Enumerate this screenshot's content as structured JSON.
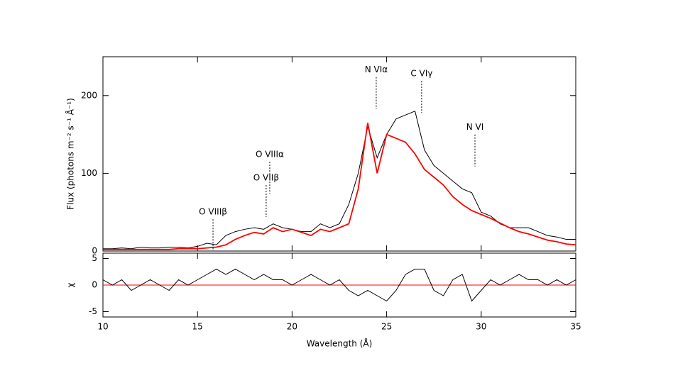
{
  "chart_data": [
    {
      "type": "line",
      "ylabel": "Flux (photons m⁻² s⁻¹ Å⁻¹)",
      "xlim": [
        10,
        35
      ],
      "ylim": [
        0,
        250
      ],
      "yticks": [
        0,
        100,
        200
      ],
      "x": [
        10,
        10.5,
        11,
        11.5,
        12,
        12.5,
        13,
        13.5,
        14,
        14.5,
        15,
        15.5,
        16,
        16.5,
        17,
        17.5,
        18,
        18.5,
        19,
        19.5,
        20,
        20.5,
        21,
        21.5,
        22,
        22.5,
        23,
        23.5,
        24,
        24.5,
        25,
        25.5,
        26,
        26.5,
        27,
        27.5,
        28,
        28.5,
        29,
        29.5,
        30,
        30.5,
        31,
        31.5,
        32,
        32.5,
        33,
        33.5,
        34,
        34.5,
        35
      ],
      "series": [
        {
          "color": "#000000",
          "values": [
            3,
            3,
            4,
            3,
            5,
            4,
            4,
            5,
            5,
            4,
            6,
            10,
            8,
            20,
            25,
            28,
            30,
            28,
            35,
            30,
            28,
            25,
            25,
            35,
            30,
            35,
            60,
            100,
            160,
            120,
            150,
            170,
            175,
            180,
            130,
            110,
            100,
            90,
            80,
            75,
            50,
            45,
            35,
            30,
            30,
            30,
            25,
            20,
            18,
            15,
            15
          ]
        },
        {
          "color": "#ff0000",
          "values": [
            2,
            2,
            2,
            2,
            2,
            2,
            2,
            2,
            3,
            3,
            3,
            4,
            5,
            8,
            15,
            20,
            24,
            22,
            30,
            25,
            28,
            24,
            20,
            28,
            25,
            30,
            35,
            80,
            165,
            100,
            150,
            145,
            140,
            125,
            105,
            95,
            85,
            70,
            60,
            52,
            47,
            42,
            36,
            30,
            25,
            22,
            18,
            14,
            12,
            9,
            8
          ]
        }
      ],
      "annotations": [
        {
          "text": "O VIIIβ",
          "x": 15.82,
          "y": 50
        },
        {
          "text": "O VIIβ",
          "x": 18.63,
          "y": 94
        },
        {
          "text": "O VIIIα",
          "x": 18.82,
          "y": 124
        },
        {
          "text": "N VIα",
          "x": 24.45,
          "y": 233
        },
        {
          "text": "C VIγ",
          "x": 26.85,
          "y": 228
        },
        {
          "text": "N VI",
          "x": 29.67,
          "y": 159
        }
      ]
    },
    {
      "type": "line",
      "ylabel": "χ",
      "xlabel": "Wavelength (Å)",
      "xlim": [
        10,
        35
      ],
      "ylim": [
        -6,
        6
      ],
      "yticks": [
        -5,
        0,
        5
      ],
      "xticks": [
        10,
        15,
        20,
        25,
        30,
        35
      ],
      "x": [
        10,
        10.5,
        11,
        11.5,
        12,
        12.5,
        13,
        13.5,
        14,
        14.5,
        15,
        15.5,
        16,
        16.5,
        17,
        17.5,
        18,
        18.5,
        19,
        19.5,
        20,
        20.5,
        21,
        21.5,
        22,
        22.5,
        23,
        23.5,
        24,
        24.5,
        25,
        25.5,
        26,
        26.5,
        27,
        27.5,
        28,
        28.5,
        29,
        29.5,
        30,
        30.5,
        31,
        31.5,
        32,
        32.5,
        33,
        33.5,
        34,
        34.5,
        35
      ],
      "series": [
        {
          "color": "#000000",
          "values": [
            1,
            0,
            1,
            -1,
            0,
            1,
            0,
            -1,
            1,
            0,
            1,
            2,
            3,
            2,
            3,
            2,
            1,
            2,
            1,
            1,
            0,
            1,
            2,
            1,
            0,
            1,
            -1,
            -2,
            -1,
            -2,
            -3,
            -1,
            2,
            3,
            3,
            -1,
            -2,
            1,
            2,
            -3,
            -1,
            1,
            0,
            1,
            2,
            1,
            1,
            0,
            1,
            0,
            1
          ]
        }
      ]
    }
  ]
}
